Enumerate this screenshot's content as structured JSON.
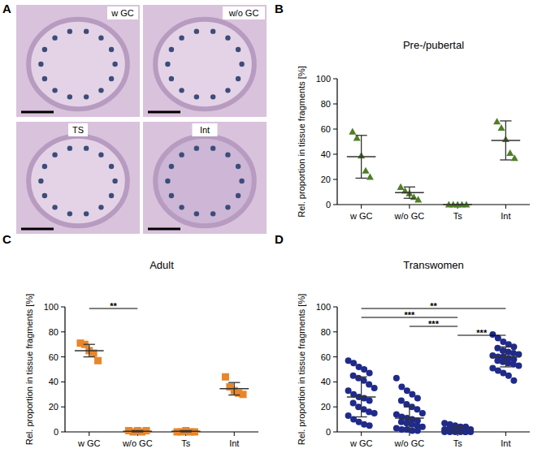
{
  "figure": {
    "panel_a": {
      "panel": "A",
      "images": [
        "w GC",
        "w/o GC",
        "TS",
        "Int"
      ]
    }
  },
  "chart_data": [
    {
      "panel": "B",
      "type": "scatter",
      "title": "Pre-/pubertal",
      "y_label": "Rel. proportion in tissue fragments [%]",
      "categories": [
        "w GC",
        "w/o GC",
        "Ts",
        "Int"
      ],
      "ylim": [
        0,
        100
      ],
      "yticks": [
        0,
        20,
        40,
        60,
        80,
        100
      ],
      "color": "#4f7f25",
      "marker": "triangle",
      "points": [
        [
          58,
          53,
          39,
          27,
          22
        ],
        [
          14,
          11,
          9,
          6,
          4
        ],
        [
          0,
          0,
          0,
          0,
          0
        ],
        [
          66,
          61,
          52,
          41,
          37
        ]
      ],
      "means": [
        38,
        9.5,
        0,
        51
      ],
      "errors": [
        17,
        4.5,
        0,
        15.5
      ],
      "significance": []
    },
    {
      "panel": "C",
      "type": "scatter",
      "title": "Adult",
      "y_label": "Rel. proportion in tissue fragments [%]",
      "categories": [
        "w GC",
        "w/o GC",
        "Ts",
        "Int"
      ],
      "ylim": [
        0,
        100
      ],
      "yticks": [
        0,
        20,
        40,
        60,
        80,
        100
      ],
      "color": "#e8862a",
      "marker": "square",
      "points": [
        [
          71,
          70,
          65,
          63,
          57
        ],
        [
          1,
          0,
          1,
          0,
          1
        ],
        [
          0,
          0,
          1,
          0,
          0
        ],
        [
          44,
          36,
          33,
          31,
          30
        ]
      ],
      "means": [
        65,
        0.5,
        0.5,
        34.5
      ],
      "errors": [
        5,
        0.5,
        0.5,
        5
      ],
      "significance": [
        {
          "between": [
            "w GC",
            "w/o GC"
          ],
          "label": "**"
        }
      ]
    },
    {
      "panel": "D",
      "type": "scatter",
      "title": "Transwomen",
      "y_label": "Rel. proportion in tissue fragments [%]",
      "categories": [
        "w GC",
        "w/o GC",
        "Ts",
        "Int"
      ],
      "ylim": [
        0,
        100
      ],
      "yticks": [
        0,
        20,
        40,
        60,
        80,
        100
      ],
      "color": "#1f2a8a",
      "marker": "circle",
      "points": [
        [
          57,
          55,
          52,
          50,
          47,
          45,
          43,
          41,
          38,
          35,
          33,
          30,
          28,
          27,
          25,
          23,
          20,
          18,
          16,
          15,
          13,
          10,
          8,
          6,
          5
        ],
        [
          43,
          36,
          33,
          30,
          27,
          25,
          22,
          20,
          18,
          15,
          14,
          12,
          11,
          10,
          9,
          8,
          7,
          6,
          5,
          4,
          3,
          2,
          2,
          1,
          1
        ],
        [
          7,
          6,
          5,
          4,
          4,
          3,
          3,
          3,
          2,
          2,
          2,
          2,
          1,
          1,
          1,
          1,
          1,
          1,
          0,
          0,
          0,
          0,
          0,
          0,
          0
        ],
        [
          78,
          75,
          72,
          70,
          68,
          67,
          65,
          64,
          63,
          62,
          61,
          60,
          60,
          59,
          58,
          57,
          56,
          55,
          54,
          53,
          51,
          49,
          47,
          45,
          41
        ]
      ],
      "means": [
        28,
        11,
        2,
        60
      ],
      "errors": [
        16,
        9,
        2,
        8
      ],
      "significance": [
        {
          "between": [
            "w GC",
            "Int"
          ],
          "label": "**"
        },
        {
          "between": [
            "w GC",
            "Ts"
          ],
          "label": "***"
        },
        {
          "between": [
            "w/o GC",
            "Ts"
          ],
          "label": "***"
        },
        {
          "between": [
            "Ts",
            "Int"
          ],
          "label": "***"
        }
      ]
    }
  ]
}
